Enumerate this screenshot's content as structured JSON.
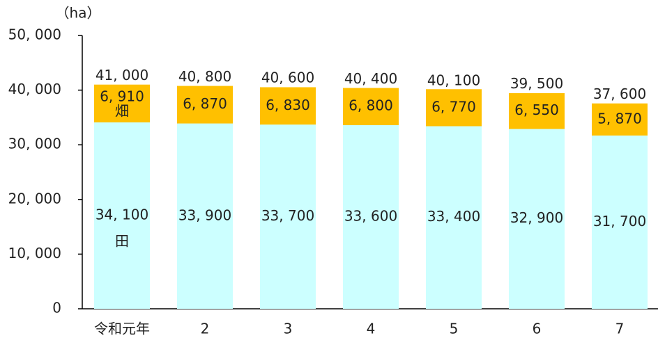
{
  "chart_data": {
    "type": "stacked_bar",
    "y_label": "（ha）",
    "categories": [
      "令和元年",
      "2",
      "3",
      "4",
      "5",
      "6",
      "7"
    ],
    "series": [
      {
        "name": "田",
        "color": "#ccffff",
        "values": [
          34100,
          33900,
          33700,
          33600,
          33400,
          32900,
          31700
        ],
        "value_labels": [
          "34, 100",
          "33, 900",
          "33, 700",
          "33, 600",
          "33, 400",
          "32, 900",
          "31, 700"
        ]
      },
      {
        "name": "畑",
        "color": "#ffc000",
        "values": [
          6910,
          6870,
          6830,
          6800,
          6770,
          6550,
          5870
        ],
        "value_labels": [
          "6, 910",
          "6, 870",
          "6, 830",
          "6, 800",
          "6, 770",
          "6, 550",
          "5, 870"
        ]
      }
    ],
    "totals": {
      "values": [
        41000,
        40800,
        40600,
        40400,
        40100,
        39500,
        37600
      ],
      "value_labels": [
        "41, 000",
        "40, 800",
        "40, 600",
        "40, 400",
        "40, 100",
        "39, 500",
        "37, 600"
      ]
    },
    "ylim": [
      0,
      50000
    ],
    "yticks": [
      0,
      {
        "value": 10000,
        "label": "10, 000"
      },
      {
        "value": 20000,
        "label": "20, 000"
      },
      {
        "value": 30000,
        "label": "30, 000"
      },
      {
        "value": 40000,
        "label": "40, 000"
      },
      {
        "value": 50000,
        "label": "50, 000"
      }
    ],
    "grid": false
  }
}
